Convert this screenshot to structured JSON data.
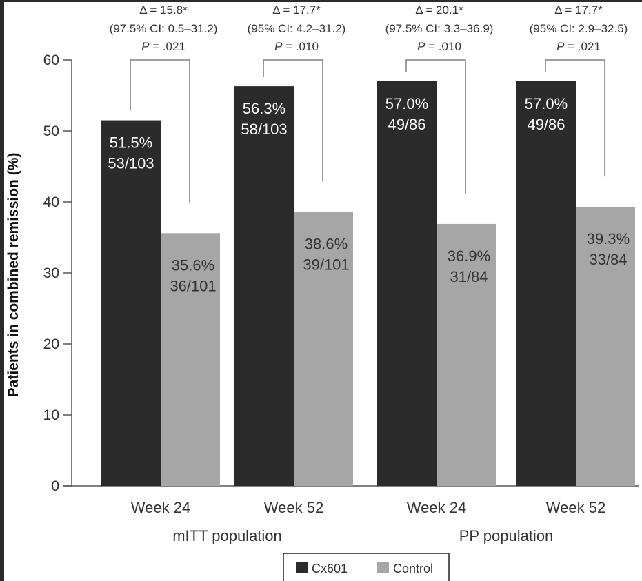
{
  "chart_data": {
    "type": "bar",
    "title": "",
    "xlabel": "",
    "ylabel": "Patients in combined remission (%)",
    "ylim": [
      0,
      60
    ],
    "yticks": [
      0,
      10,
      20,
      30,
      40,
      50,
      60
    ],
    "grid": false,
    "categories": [
      "Week 24",
      "Week 52",
      "Week 24",
      "Week 52"
    ],
    "category_groups": [
      {
        "label": "mITT population",
        "categories": [
          0,
          1
        ]
      },
      {
        "label": "PP population",
        "categories": [
          2,
          3
        ]
      }
    ],
    "series": [
      {
        "name": "Cx601",
        "color": "#2b2b2b",
        "values": [
          51.5,
          56.3,
          57.0,
          57.0
        ],
        "labels": [
          "51.5%",
          "56.3%",
          "57.0%",
          "57.0%"
        ],
        "counts": [
          "53/103",
          "58/103",
          "49/86",
          "49/86"
        ]
      },
      {
        "name": "Control",
        "color": "#a6a6a6",
        "values": [
          35.6,
          38.6,
          36.9,
          39.3
        ],
        "labels": [
          "35.6%",
          "38.6%",
          "36.9%",
          "39.3%"
        ],
        "counts": [
          "36/101",
          "39/101",
          "31/84",
          "33/84"
        ]
      }
    ],
    "annotations": [
      {
        "delta": "Δ = 15.8*",
        "ci": "(97.5% CI: 0.5–31.2)",
        "p_label": "P",
        "p_value": " = .021"
      },
      {
        "delta": "Δ = 17.7*",
        "ci": "(95% CI: 4.2–31.2)",
        "p_label": "P",
        "p_value": " = .010"
      },
      {
        "delta": "Δ = 20.1*",
        "ci": "(97.5% CI: 3.3–36.9)",
        "p_label": "P",
        "p_value": " = .010"
      },
      {
        "delta": "Δ = 17.7*",
        "ci": "(95% CI: 2.9–32.5)",
        "p_label": "P",
        "p_value": " = .021"
      }
    ],
    "legend": {
      "position": "bottom-center",
      "entries": [
        {
          "label": "Cx601",
          "color": "#2b2b2b"
        },
        {
          "label": "Control",
          "color": "#a6a6a6"
        }
      ]
    }
  }
}
